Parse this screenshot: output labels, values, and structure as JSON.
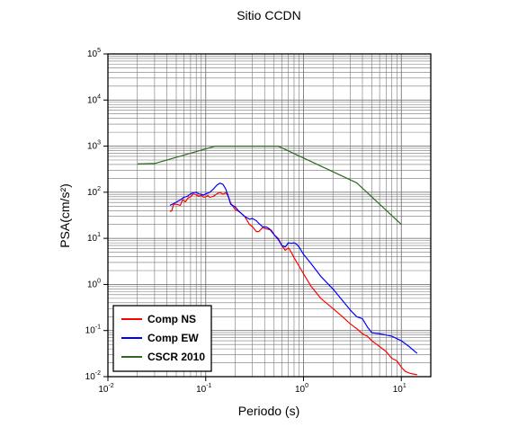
{
  "chart_data": {
    "type": "line",
    "title": "Sitio CCDN",
    "xlabel": "Periodo (s)",
    "ylabel": "PSA(cm/s²)",
    "x_scale": "log",
    "y_scale": "log",
    "xlim": [
      0.01,
      20
    ],
    "ylim": [
      0.01,
      100000
    ],
    "grid": true,
    "legend_position": "bottom-left",
    "x_ticks": [
      {
        "base": "10",
        "exp": "-2",
        "value": 0.01
      },
      {
        "base": "10",
        "exp": "-1",
        "value": 0.1
      },
      {
        "base": "10",
        "exp": "0",
        "value": 1
      },
      {
        "base": "10",
        "exp": "1",
        "value": 10
      }
    ],
    "y_ticks": [
      {
        "base": "10",
        "exp": "-2",
        "value": 0.01
      },
      {
        "base": "10",
        "exp": "-1",
        "value": 0.1
      },
      {
        "base": "10",
        "exp": "0",
        "value": 1
      },
      {
        "base": "10",
        "exp": "1",
        "value": 10
      },
      {
        "base": "10",
        "exp": "2",
        "value": 100
      },
      {
        "base": "10",
        "exp": "3",
        "value": 1000
      },
      {
        "base": "10",
        "exp": "4",
        "value": 10000
      },
      {
        "base": "10",
        "exp": "5",
        "value": 100000
      }
    ],
    "series": [
      {
        "name": "Comp NS",
        "color": "#ff0000",
        "points": [
          [
            0.043,
            38
          ],
          [
            0.045,
            40
          ],
          [
            0.047,
            55
          ],
          [
            0.05,
            55
          ],
          [
            0.055,
            52
          ],
          [
            0.058,
            68
          ],
          [
            0.062,
            62
          ],
          [
            0.066,
            75
          ],
          [
            0.07,
            80
          ],
          [
            0.075,
            92
          ],
          [
            0.08,
            88
          ],
          [
            0.085,
            82
          ],
          [
            0.09,
            86
          ],
          [
            0.095,
            78
          ],
          [
            0.1,
            80
          ],
          [
            0.105,
            85
          ],
          [
            0.11,
            78
          ],
          [
            0.12,
            82
          ],
          [
            0.13,
            92
          ],
          [
            0.14,
            100
          ],
          [
            0.15,
            90
          ],
          [
            0.16,
            98
          ],
          [
            0.17,
            82
          ],
          [
            0.18,
            58
          ],
          [
            0.2,
            42
          ],
          [
            0.22,
            38
          ],
          [
            0.25,
            30
          ],
          [
            0.28,
            20
          ],
          [
            0.3,
            18
          ],
          [
            0.33,
            14
          ],
          [
            0.35,
            14
          ],
          [
            0.38,
            17
          ],
          [
            0.42,
            16
          ],
          [
            0.47,
            15
          ],
          [
            0.5,
            12
          ],
          [
            0.55,
            10
          ],
          [
            0.6,
            7
          ],
          [
            0.65,
            5.5
          ],
          [
            0.7,
            6.2
          ],
          [
            0.75,
            5
          ],
          [
            0.8,
            3.8
          ],
          [
            0.9,
            2.5
          ],
          [
            1.0,
            1.7
          ],
          [
            1.2,
            0.9
          ],
          [
            1.5,
            0.5
          ],
          [
            2,
            0.3
          ],
          [
            2.5,
            0.2
          ],
          [
            3,
            0.14
          ],
          [
            3.5,
            0.11
          ],
          [
            4,
            0.085
          ],
          [
            4.5,
            0.075
          ],
          [
            5,
            0.06
          ],
          [
            6,
            0.045
          ],
          [
            7,
            0.035
          ],
          [
            8,
            0.025
          ],
          [
            9,
            0.022
          ],
          [
            10,
            0.016
          ],
          [
            11,
            0.013
          ],
          [
            12,
            0.012
          ],
          [
            13,
            0.0115
          ],
          [
            14.5,
            0.011
          ]
        ]
      },
      {
        "name": "Comp EW",
        "color": "#0000ff",
        "points": [
          [
            0.043,
            52
          ],
          [
            0.048,
            58
          ],
          [
            0.055,
            68
          ],
          [
            0.06,
            78
          ],
          [
            0.065,
            82
          ],
          [
            0.07,
            92
          ],
          [
            0.075,
            98
          ],
          [
            0.08,
            100
          ],
          [
            0.085,
            92
          ],
          [
            0.09,
            90
          ],
          [
            0.095,
            86
          ],
          [
            0.1,
            92
          ],
          [
            0.11,
            100
          ],
          [
            0.12,
            118
          ],
          [
            0.13,
            142
          ],
          [
            0.14,
            158
          ],
          [
            0.15,
            148
          ],
          [
            0.16,
            118
          ],
          [
            0.17,
            82
          ],
          [
            0.18,
            55
          ],
          [
            0.2,
            48
          ],
          [
            0.22,
            38
          ],
          [
            0.25,
            30
          ],
          [
            0.28,
            26
          ],
          [
            0.3,
            27
          ],
          [
            0.33,
            24
          ],
          [
            0.35,
            21
          ],
          [
            0.38,
            18
          ],
          [
            0.42,
            17.5
          ],
          [
            0.45,
            16
          ],
          [
            0.5,
            12
          ],
          [
            0.55,
            9.5
          ],
          [
            0.6,
            7
          ],
          [
            0.65,
            6.5
          ],
          [
            0.7,
            8
          ],
          [
            0.75,
            7.8
          ],
          [
            0.8,
            8
          ],
          [
            0.85,
            7.5
          ],
          [
            0.9,
            6.5
          ],
          [
            1.0,
            4.5
          ],
          [
            1.2,
            2.8
          ],
          [
            1.5,
            1.5
          ],
          [
            2,
            0.8
          ],
          [
            2.5,
            0.45
          ],
          [
            3,
            0.28
          ],
          [
            3.5,
            0.2
          ],
          [
            4,
            0.18
          ],
          [
            4.5,
            0.12
          ],
          [
            5,
            0.09
          ],
          [
            6,
            0.085
          ],
          [
            7,
            0.08
          ],
          [
            8,
            0.075
          ],
          [
            10,
            0.06
          ],
          [
            12,
            0.045
          ],
          [
            14.5,
            0.032
          ]
        ]
      },
      {
        "name": "CSCR 2010",
        "color": "#2d6a1f",
        "points": [
          [
            0.02,
            410
          ],
          [
            0.03,
            420
          ],
          [
            0.125,
            1000
          ],
          [
            0.55,
            1000
          ],
          [
            3.5,
            160
          ],
          [
            10,
            20
          ]
        ]
      }
    ]
  }
}
